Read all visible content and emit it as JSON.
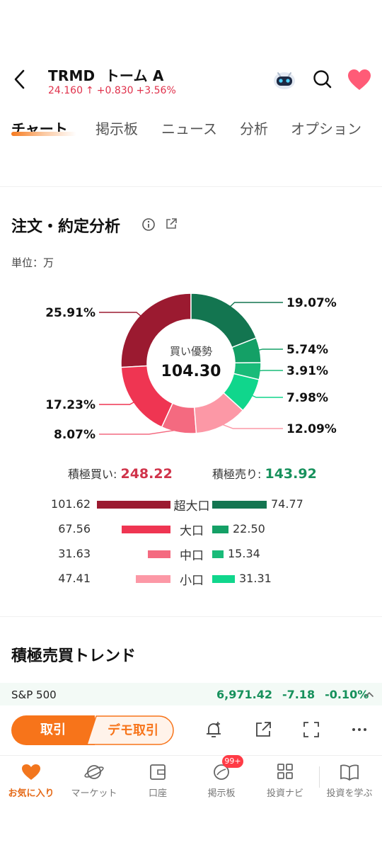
{
  "header": {
    "symbol": "TRMD",
    "name": "トーム A",
    "price": "24.160",
    "arrow": "↑",
    "change": "+0.830",
    "change_pct": "+3.56%"
  },
  "tabs": [
    "チャート",
    "掲示板",
    "ニュース",
    "分析",
    "オプション"
  ],
  "section": {
    "title": "注文・約定分析",
    "unit": "単位：万"
  },
  "chart_data": {
    "type": "pie",
    "center_title": "買い優勢",
    "center_value": "104.30",
    "slices": [
      {
        "label": "19.07%",
        "value": 19.07,
        "color": "#137550"
      },
      {
        "label": "5.74%",
        "value": 5.74,
        "color": "#14a066"
      },
      {
        "label": "3.91%",
        "value": 3.91,
        "color": "#19bb79"
      },
      {
        "label": "7.98%",
        "value": 7.98,
        "color": "#10d68c"
      },
      {
        "label": "12.09%",
        "value": 12.09,
        "color": "#fc98a6"
      },
      {
        "label": "8.07%",
        "value": 8.07,
        "color": "#f46a80"
      },
      {
        "label": "17.23%",
        "value": 17.23,
        "color": "#ef3552"
      },
      {
        "label": "25.91%",
        "value": 25.91,
        "color": "#9b1a30"
      }
    ]
  },
  "totals": {
    "buy_label": "積極買い: ",
    "buy_value": "248.22",
    "sell_label": "積極売り: ",
    "sell_value": "143.92"
  },
  "breakdown": [
    {
      "name": "超大口",
      "buy": "101.62",
      "sell": "74.77",
      "buy_color": "#9b1a30",
      "sell_color": "#137550"
    },
    {
      "name": "大口",
      "buy": "67.56",
      "sell": "22.50",
      "buy_color": "#ef3552",
      "sell_color": "#14a066"
    },
    {
      "name": "中口",
      "buy": "31.63",
      "sell": "15.34",
      "buy_color": "#f46a80",
      "sell_color": "#19bb79"
    },
    {
      "name": "小口",
      "buy": "47.41",
      "sell": "31.31",
      "buy_color": "#fc98a6",
      "sell_color": "#10d68c"
    }
  ],
  "trend_title": "積極売買トレンド",
  "index_bar": {
    "name": "S&P 500",
    "value": "6,971.42",
    "change": "-7.18",
    "change_pct": "-0.10%"
  },
  "actions": {
    "trade_label": "取引",
    "demo_label": "デモ取引"
  },
  "bottom_nav": {
    "items": [
      "お気に入り",
      "マーケット",
      "口座",
      "掲示板",
      "投資ナビ",
      "投資を学ぶ"
    ],
    "badge": "99+"
  },
  "colors": {
    "accent": "#f7741a",
    "up": "#e0314b",
    "down": "#17915c"
  }
}
